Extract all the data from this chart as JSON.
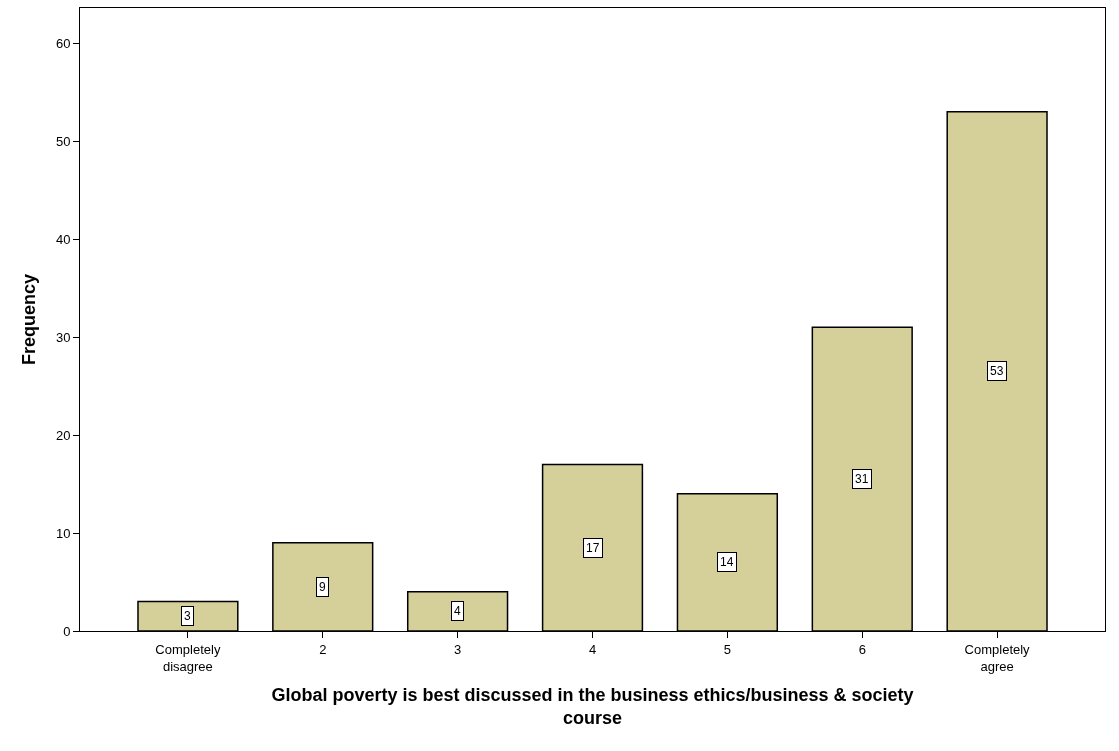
{
  "chart_data": {
    "type": "bar",
    "xlabel": "Global poverty is best discussed in the business ethics/business & society course",
    "ylabel": "Frequency",
    "categories": [
      "Completely disagree",
      "2",
      "3",
      "4",
      "5",
      "6",
      "Completely agree"
    ],
    "values": [
      3,
      9,
      4,
      17,
      14,
      31,
      53
    ],
    "color": "#d5cf99",
    "ylim": [
      0,
      63.6
    ],
    "yticks": [
      0,
      10,
      20,
      30,
      40,
      50,
      60
    ],
    "data_labels": true
  }
}
